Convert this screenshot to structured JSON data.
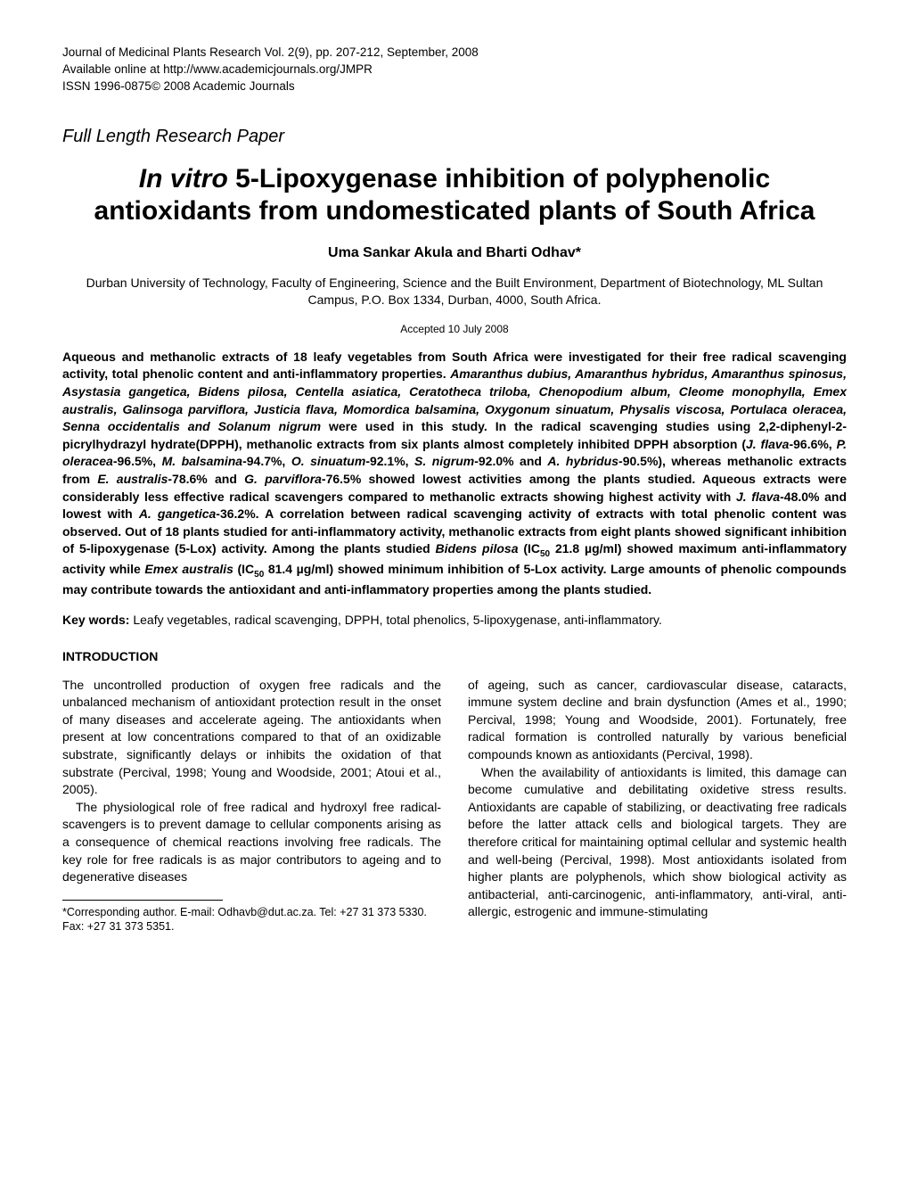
{
  "header": {
    "line1": "Journal of Medicinal Plants Research Vol. 2(9), pp. 207-212, September, 2008",
    "line2": "Available online at http://www.academicjournals.org/JMPR",
    "line3": "ISSN 1996-0875© 2008 Academic Journals"
  },
  "paper_type": "Full Length Research Paper",
  "title": {
    "italic_part": "In vitro",
    "rest": " 5-Lipoxygenase inhibition of polyphenolic antioxidants from undomesticated plants of South Africa"
  },
  "authors": "Uma Sankar Akula and Bharti Odhav*",
  "affiliation": "Durban University of Technology, Faculty of Engineering, Science and the Built Environment, Department of Biotechnology, ML Sultan Campus, P.O. Box 1334, Durban, 4000, South Africa.",
  "accepted": "Accepted 10 July 2008",
  "abstract": {
    "part1": "Aqueous and methanolic extracts of 18 leafy vegetables from South Africa were investigated for their free radical scavenging activity, total phenolic content and anti-inflammatory properties. ",
    "species1": "Amaranthus dubius, Amaranthus hybridus, Amaranthus spinosus, Asystasia gangetica, Bidens pilosa, Centella asiatica, Ceratotheca triloba, Chenopodium album, Cleome monophylla, Emex australis, Galinsoga parviflora, Justicia flava, Momordica balsamina, Oxygonum sinuatum, Physalis viscosa, Portulaca oleracea, Senna occidentalis and Solanum nigrum",
    "part2": " were used in this study. In the radical scavenging studies using 2,2-diphenyl-2-picrylhydrazyl hydrate(DPPH), methanolic extracts from six plants almost completely inhibited DPPH absorption (",
    "species2": "J. flava",
    "part3": "-96.6%, ",
    "species3": "P. oleracea",
    "part4": "-96.5%, ",
    "species4": "M. balsamina",
    "part5": "-94.7%, ",
    "species5": "O. sinuatum",
    "part6": "-92.1%, ",
    "species6": "S. nigrum",
    "part7": "-92.0% and ",
    "species7": "A. hybridus",
    "part8": "-90.5%), whereas methanolic extracts from ",
    "species8": "E. australis",
    "part9": "-78.6% and ",
    "species9": "G. parviflora",
    "part10": "-76.5% showed lowest activities among the plants studied.  Aqueous extracts were considerably less effective radical scavengers compared to methanolic extracts showing highest activity with ",
    "species10": "J. flava",
    "part11": "-48.0% and lowest with ",
    "species11": "A. gangetica",
    "part12": "-36.2%. A correlation between radical scavenging activity of extracts with total phenolic content was observed. Out of 18 plants studied for anti-inflammatory activity, methanolic extracts from eight plants showed significant inhibition of 5-lipoxygenase (5-Lox) activity. Among the plants studied ",
    "species12": "Bidens pilosa",
    "part13": " (IC",
    "sub1": "50",
    "part14": " 21.8 µg/ml) showed maximum anti-inflammatory activity while ",
    "species13": "Emex australis",
    "part15": " (IC",
    "sub2": "50",
    "part16": " 81.4 µg/ml) showed minimum inhibition of 5-Lox activity. Large amounts of phenolic compounds may contribute towards the antioxidant and anti-inflammatory properties among the plants studied."
  },
  "keywords": {
    "label": "Key words:",
    "text": " Leafy vegetables, radical scavenging, DPPH, total phenolics, 5-lipoxygenase, anti-inflammatory."
  },
  "section_heading": "INTRODUCTION",
  "body": {
    "col1_p1": "The uncontrolled production of oxygen free radicals and the unbalanced mechanism of antioxidant protection result in the onset of many diseases and accelerate ageing. The antioxidants when present at low concentrations compared to that of an oxidizable substrate, significantly delays or inhibits the oxidation of that substrate (Percival, 1998; Young and Woodside, 2001; Atoui et al., 2005).",
    "col1_p2": "The physiological role of free radical and hydroxyl free radical-scavengers is to prevent damage to cellular components arising as a consequence of chemical reactions involving free radicals. The key role for free radicals is as major contributors to ageing and to degenerative diseases",
    "col2_p1": "of ageing, such as cancer, cardiovascular disease, cataracts, immune system decline and brain dysfunction (Ames et al., 1990; Percival, 1998; Young and Woodside, 2001).  Fortunately, free radical formation is controlled naturally by various beneficial compounds known as antioxidants (Percival, 1998).",
    "col2_p2": "When the availability of antioxidants is limited, this damage can become cumulative and debilitating oxidetive stress results. Antioxidants are capable of stabilizing, or deactivating free radicals before the latter attack cells and biological targets. They are therefore critical for maintaining optimal cellular and systemic health and well-being (Percival, 1998). Most antioxidants isolated from higher plants are polyphenols, which show biological activity as antibacterial, anti-carcinogenic, anti-inflammatory, anti-viral, anti-allergic, estrogenic and immune-stimulating"
  },
  "footnote": "*Corresponding author. E-mail: Odhavb@dut.ac.za. Tel: +27 31 373 5330. Fax: +27 31 373 5351."
}
